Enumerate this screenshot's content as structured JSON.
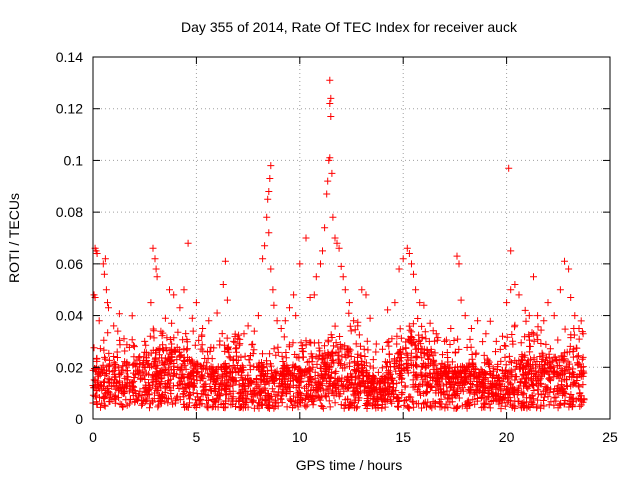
{
  "chart_data": {
    "type": "scatter",
    "title": "Day 355 of 2014, Rate Of TEC Index for receiver auck",
    "xlabel": "GPS time / hours",
    "ylabel": "ROTI / TECUs",
    "xlim": [
      0,
      25
    ],
    "ylim": [
      0,
      0.14
    ],
    "xticks": [
      0,
      5,
      10,
      15,
      20,
      25
    ],
    "yticks": [
      0,
      0.02,
      0.04,
      0.06,
      0.08,
      0.1,
      0.12,
      0.14
    ],
    "xtick_labels": [
      "0",
      "5",
      "10",
      "15",
      "20",
      "25"
    ],
    "ytick_labels": [
      "0",
      "0.02",
      "0.04",
      "0.06",
      "0.08",
      "0.1",
      "0.12",
      "0.14"
    ],
    "grid": true,
    "marker": "+",
    "marker_color": "#ff0000",
    "data_range_hours": [
      0,
      23.75
    ],
    "points": [
      [
        0.1,
        0.066
      ],
      [
        0.15,
        0.065
      ],
      [
        0.2,
        0.064
      ],
      [
        0.05,
        0.048
      ],
      [
        0.1,
        0.047
      ],
      [
        0.3,
        0.038
      ],
      [
        0.5,
        0.06
      ],
      [
        0.6,
        0.062
      ],
      [
        0.55,
        0.056
      ],
      [
        0.65,
        0.05
      ],
      [
        0.7,
        0.045
      ],
      [
        0.75,
        0.043
      ],
      [
        1.0,
        0.036
      ],
      [
        1.2,
        0.034
      ],
      [
        1.5,
        0.031
      ],
      [
        2.0,
        0.028
      ],
      [
        2.5,
        0.03
      ],
      [
        2.8,
        0.045
      ],
      [
        2.9,
        0.066
      ],
      [
        3.0,
        0.062
      ],
      [
        3.05,
        0.058
      ],
      [
        3.1,
        0.055
      ],
      [
        3.5,
        0.039
      ],
      [
        3.8,
        0.037
      ],
      [
        3.7,
        0.05
      ],
      [
        3.9,
        0.048
      ],
      [
        4.2,
        0.043
      ],
      [
        4.4,
        0.05
      ],
      [
        4.6,
        0.068
      ],
      [
        4.8,
        0.039
      ],
      [
        5.0,
        0.045
      ],
      [
        5.3,
        0.035
      ],
      [
        5.6,
        0.038
      ],
      [
        6.0,
        0.041
      ],
      [
        6.3,
        0.052
      ],
      [
        6.4,
        0.061
      ],
      [
        6.5,
        0.046
      ],
      [
        6.8,
        0.03
      ],
      [
        7.0,
        0.031
      ],
      [
        7.3,
        0.033
      ],
      [
        7.5,
        0.036
      ],
      [
        7.8,
        0.034
      ],
      [
        8.0,
        0.04
      ],
      [
        8.2,
        0.062
      ],
      [
        8.3,
        0.067
      ],
      [
        8.4,
        0.078
      ],
      [
        8.45,
        0.085
      ],
      [
        8.5,
        0.088
      ],
      [
        8.55,
        0.093
      ],
      [
        8.6,
        0.098
      ],
      [
        8.5,
        0.072
      ],
      [
        8.6,
        0.058
      ],
      [
        8.7,
        0.05
      ],
      [
        8.75,
        0.044
      ],
      [
        8.9,
        0.038
      ],
      [
        9.1,
        0.035
      ],
      [
        9.3,
        0.038
      ],
      [
        9.5,
        0.043
      ],
      [
        9.7,
        0.048
      ],
      [
        9.8,
        0.04
      ],
      [
        10.0,
        0.06
      ],
      [
        10.3,
        0.07
      ],
      [
        10.5,
        0.047
      ],
      [
        10.7,
        0.048
      ],
      [
        10.8,
        0.055
      ],
      [
        11.0,
        0.06
      ],
      [
        11.1,
        0.065
      ],
      [
        11.2,
        0.074
      ],
      [
        11.3,
        0.087
      ],
      [
        11.35,
        0.092
      ],
      [
        11.4,
        0.1
      ],
      [
        11.45,
        0.101
      ],
      [
        11.5,
        0.117
      ],
      [
        11.45,
        0.122
      ],
      [
        11.5,
        0.124
      ],
      [
        11.45,
        0.131
      ],
      [
        11.55,
        0.095
      ],
      [
        11.6,
        0.078
      ],
      [
        11.7,
        0.07
      ],
      [
        11.8,
        0.068
      ],
      [
        11.9,
        0.066
      ],
      [
        12.0,
        0.059
      ],
      [
        12.1,
        0.055
      ],
      [
        12.2,
        0.05
      ],
      [
        12.4,
        0.045
      ],
      [
        12.6,
        0.038
      ],
      [
        12.8,
        0.036
      ],
      [
        13.0,
        0.05
      ],
      [
        13.2,
        0.048
      ],
      [
        13.4,
        0.039
      ],
      [
        13.7,
        0.029
      ],
      [
        14.0,
        0.027
      ],
      [
        14.3,
        0.03
      ],
      [
        14.6,
        0.045
      ],
      [
        14.8,
        0.058
      ],
      [
        15.0,
        0.062
      ],
      [
        15.2,
        0.066
      ],
      [
        15.3,
        0.064
      ],
      [
        15.4,
        0.06
      ],
      [
        15.5,
        0.056
      ],
      [
        15.6,
        0.05
      ],
      [
        15.8,
        0.045
      ],
      [
        16.0,
        0.044
      ],
      [
        16.3,
        0.037
      ],
      [
        16.6,
        0.033
      ],
      [
        17.0,
        0.03
      ],
      [
        17.3,
        0.035
      ],
      [
        17.6,
        0.063
      ],
      [
        17.7,
        0.06
      ],
      [
        17.8,
        0.046
      ],
      [
        18.0,
        0.04
      ],
      [
        18.3,
        0.035
      ],
      [
        18.6,
        0.038
      ],
      [
        19.0,
        0.033
      ],
      [
        19.5,
        0.03
      ],
      [
        19.8,
        0.032
      ],
      [
        20.0,
        0.045
      ],
      [
        20.2,
        0.05
      ],
      [
        20.1,
        0.097
      ],
      [
        20.2,
        0.065
      ],
      [
        20.4,
        0.052
      ],
      [
        20.6,
        0.048
      ],
      [
        20.9,
        0.042
      ],
      [
        21.1,
        0.04
      ],
      [
        21.3,
        0.055
      ],
      [
        21.5,
        0.04
      ],
      [
        21.8,
        0.038
      ],
      [
        22.0,
        0.045
      ],
      [
        22.3,
        0.04
      ],
      [
        22.6,
        0.05
      ],
      [
        22.8,
        0.061
      ],
      [
        23.0,
        0.058
      ],
      [
        23.1,
        0.047
      ],
      [
        23.3,
        0.04
      ],
      [
        23.5,
        0.035
      ],
      [
        23.7,
        0.033
      ]
    ]
  }
}
